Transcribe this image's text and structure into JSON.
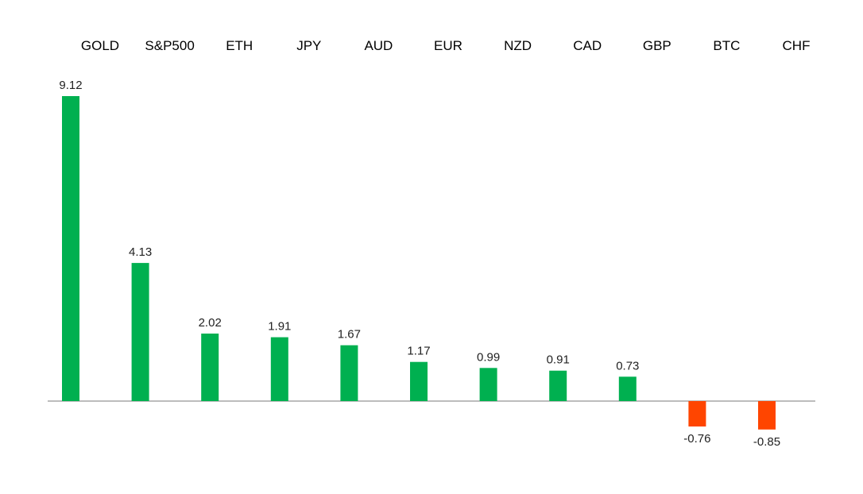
{
  "chart_data": {
    "type": "bar",
    "categories": [
      "GOLD",
      "S&P500",
      "ETH",
      "JPY",
      "AUD",
      "EUR",
      "NZD",
      "CAD",
      "GBP",
      "BTC",
      "CHF"
    ],
    "values": [
      9.12,
      4.13,
      2.02,
      1.91,
      1.67,
      1.17,
      0.99,
      0.91,
      0.73,
      -0.76,
      -0.85
    ],
    "value_labels": [
      "9.12",
      "4.13",
      "2.02",
      "1.91",
      "1.67",
      "1.17",
      "0.99",
      "0.91",
      "0.73",
      "-0.76",
      "-0.85"
    ],
    "title": "",
    "xlabel": "",
    "ylabel": "",
    "legend": "none",
    "grid": false,
    "category_labels_position": "top",
    "colors": {
      "positive": "#00B050",
      "negative": "#FF4500",
      "axis": "#A6A6A6"
    }
  }
}
